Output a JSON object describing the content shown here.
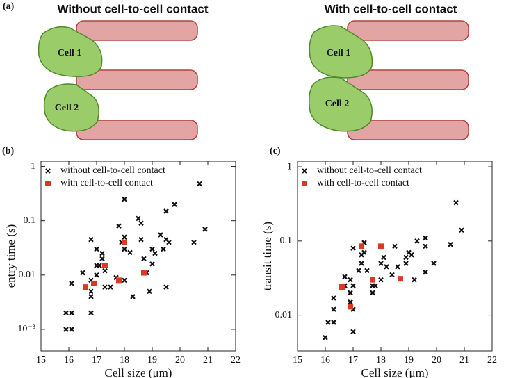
{
  "diagram": {
    "label": "(a)",
    "panels": [
      {
        "title": "Without cell-to-cell contact",
        "cells": [
          "Cell 1",
          "Cell 2"
        ]
      },
      {
        "title": "With cell-to-cell contact",
        "cells": [
          "Cell 1",
          "Cell 2"
        ]
      }
    ]
  },
  "chart_data": [
    {
      "type": "scatter",
      "panel_label": "(b)",
      "x_label": "Cell size (μm)",
      "y_label": "entry time (s)",
      "xlim": [
        15,
        22
      ],
      "xticks": [
        15,
        16,
        17,
        18,
        19,
        20,
        21,
        22
      ],
      "ylim": [
        0.0004,
        1.25
      ],
      "log_y": true,
      "yticks": [
        1,
        0.1,
        0.01,
        {
          "value": 0.001,
          "label": "10⁻³"
        }
      ],
      "legend": "upper left",
      "series": [
        {
          "name": "without cell-to-cell contact",
          "color": "#111111",
          "marker": "x",
          "x": [
            15.9,
            16.1,
            15.9,
            16.1,
            16.1,
            16.5,
            16.8,
            16.8,
            16.8,
            16.8,
            16.8,
            17.0,
            17.0,
            17.0,
            17.1,
            17.2,
            17.2,
            17.3,
            17.3,
            17.5,
            17.7,
            17.8,
            17.9,
            18.0,
            18.0,
            18.0,
            18.0,
            18.2,
            18.3,
            18.5,
            18.6,
            18.6,
            18.7,
            18.8,
            18.9,
            19.0,
            19.0,
            19.1,
            19.3,
            19.4,
            19.5,
            19.5,
            19.6,
            19.5,
            19.8,
            20.5,
            20.7,
            20.9
          ],
          "values": [
            0.002,
            0.002,
            0.001,
            0.001,
            0.007,
            0.011,
            0.045,
            0.008,
            0.005,
            0.004,
            0.002,
            0.03,
            0.015,
            0.01,
            0.015,
            0.025,
            0.02,
            0.012,
            0.006,
            0.006,
            0.009,
            0.08,
            0.04,
            0.25,
            0.05,
            0.03,
            0.008,
            0.026,
            0.004,
            0.11,
            0.09,
            0.045,
            0.02,
            0.011,
            0.005,
            0.03,
            0.016,
            0.025,
            0.055,
            0.03,
            0.15,
            0.045,
            0.04,
            0.006,
            0.2,
            0.04,
            0.48,
            0.07
          ]
        },
        {
          "name": "with cell-to-cell contact",
          "color": "#d93a26",
          "marker": "square",
          "x": [
            16.6,
            16.9,
            17.3,
            17.8,
            18.0,
            18.7
          ],
          "values": [
            0.006,
            0.007,
            0.015,
            0.008,
            0.04,
            0.011
          ]
        }
      ]
    },
    {
      "type": "scatter",
      "panel_label": "(c)",
      "x_label": "Cell size (μm)",
      "y_label": "transit time (s)",
      "xlim": [
        15,
        22
      ],
      "xticks": [
        15,
        16,
        17,
        18,
        19,
        20,
        21,
        22
      ],
      "ylim": [
        0.0033,
        1.19
      ],
      "log_y": true,
      "yticks": [
        1,
        0.1,
        0.01
      ],
      "legend": "upper left",
      "series": [
        {
          "name": "without cell-to-cell contact",
          "color": "#111111",
          "marker": "x",
          "x": [
            16.0,
            16.1,
            16.3,
            16.3,
            16.3,
            16.7,
            16.7,
            16.9,
            16.9,
            16.9,
            17.0,
            17.0,
            17.0,
            17.0,
            17.2,
            17.3,
            17.3,
            17.4,
            17.4,
            17.5,
            17.7,
            17.7,
            17.8,
            18.0,
            18.0,
            18.1,
            18.2,
            18.4,
            18.5,
            18.6,
            18.9,
            18.9,
            19.0,
            19.1,
            19.2,
            19.3,
            19.6,
            19.6,
            19.6,
            19.9,
            20.5,
            20.7,
            20.9
          ],
          "values": [
            0.005,
            0.008,
            0.008,
            0.012,
            0.017,
            0.025,
            0.033,
            0.02,
            0.03,
            0.015,
            0.08,
            0.025,
            0.006,
            0.012,
            0.04,
            0.065,
            0.05,
            0.095,
            0.07,
            0.04,
            0.02,
            0.025,
            0.025,
            0.05,
            0.03,
            0.06,
            0.045,
            0.035,
            0.085,
            0.045,
            0.05,
            0.06,
            0.07,
            0.065,
            0.03,
            0.1,
            0.11,
            0.085,
            0.038,
            0.05,
            0.09,
            0.33,
            0.14
          ]
        },
        {
          "name": "with cell-to-cell contact",
          "color": "#d93a26",
          "marker": "square",
          "x": [
            16.6,
            16.9,
            17.3,
            17.7,
            18.0,
            18.7
          ],
          "values": [
            0.024,
            0.013,
            0.085,
            0.03,
            0.085,
            0.031
          ]
        }
      ]
    }
  ]
}
